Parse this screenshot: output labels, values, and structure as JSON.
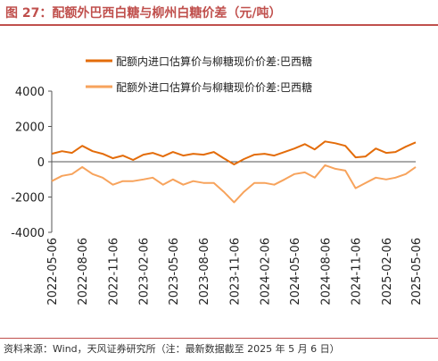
{
  "header": {
    "title": "图 27：配额外巴西白糖与柳州白糖价差（元/吨）"
  },
  "footer": {
    "source": "资料来源：Wind，天风证券研究所（注：最新数据截至 2025 年 5 月 6 日）"
  },
  "chart_data": {
    "type": "line",
    "title": "图 27：配额外巴西白糖与柳州白糖价差（元/吨）",
    "xlabel": "",
    "ylabel": "",
    "ylim": [
      -4000,
      4000
    ],
    "yticks": [
      -4000,
      -2000,
      0,
      2000,
      4000
    ],
    "xticks": [
      "2022-05-06",
      "2022-08-06",
      "2022-11-06",
      "2023-02-06",
      "2023-05-06",
      "2023-08-06",
      "2023-11-06",
      "2024-02-06",
      "2024-05-06",
      "2024-08-06",
      "2024-11-06",
      "2025-02-06",
      "2025-05-06"
    ],
    "grid": false,
    "legend": "top",
    "series": [
      {
        "name": "配额内进口估算价与柳糖现价价差:巴西糖",
        "color": "#e36c0a",
        "x": [
          "2022-05-06",
          "2022-06-06",
          "2022-07-06",
          "2022-08-06",
          "2022-09-06",
          "2022-10-06",
          "2022-11-06",
          "2022-12-06",
          "2023-01-06",
          "2023-02-06",
          "2023-03-06",
          "2023-04-06",
          "2023-05-06",
          "2023-06-06",
          "2023-07-06",
          "2023-08-06",
          "2023-09-06",
          "2023-10-06",
          "2023-11-06",
          "2023-12-06",
          "2024-01-06",
          "2024-02-06",
          "2024-03-06",
          "2024-04-06",
          "2024-05-06",
          "2024-06-06",
          "2024-07-06",
          "2024-08-06",
          "2024-09-06",
          "2024-10-06",
          "2024-11-06",
          "2024-12-06",
          "2025-01-06",
          "2025-02-06",
          "2025-03-06",
          "2025-04-06",
          "2025-05-06"
        ],
        "values": [
          450,
          600,
          500,
          900,
          600,
          450,
          200,
          350,
          100,
          400,
          500,
          300,
          550,
          350,
          450,
          400,
          550,
          200,
          -150,
          150,
          400,
          450,
          350,
          550,
          750,
          1000,
          700,
          1150,
          1050,
          900,
          250,
          300,
          750,
          500,
          550,
          850,
          1100
        ]
      },
      {
        "name": "配额外进口估算价与柳糖现价价差:巴西糖",
        "color": "#f7a35c",
        "x": [
          "2022-05-06",
          "2022-06-06",
          "2022-07-06",
          "2022-08-06",
          "2022-09-06",
          "2022-10-06",
          "2022-11-06",
          "2022-12-06",
          "2023-01-06",
          "2023-02-06",
          "2023-03-06",
          "2023-04-06",
          "2023-05-06",
          "2023-06-06",
          "2023-07-06",
          "2023-08-06",
          "2023-09-06",
          "2023-10-06",
          "2023-11-06",
          "2023-12-06",
          "2024-01-06",
          "2024-02-06",
          "2024-03-06",
          "2024-04-06",
          "2024-05-06",
          "2024-06-06",
          "2024-07-06",
          "2024-08-06",
          "2024-09-06",
          "2024-10-06",
          "2024-11-06",
          "2024-12-06",
          "2025-01-06",
          "2025-02-06",
          "2025-03-06",
          "2025-04-06",
          "2025-05-06"
        ],
        "values": [
          -1100,
          -800,
          -700,
          -300,
          -700,
          -900,
          -1300,
          -1100,
          -1100,
          -1000,
          -900,
          -1300,
          -1000,
          -1300,
          -1100,
          -1200,
          -1200,
          -1700,
          -2300,
          -1700,
          -1200,
          -1200,
          -1300,
          -1000,
          -700,
          -600,
          -900,
          -200,
          -400,
          -500,
          -1500,
          -1200,
          -900,
          -1000,
          -900,
          -700,
          -300
        ]
      }
    ]
  }
}
